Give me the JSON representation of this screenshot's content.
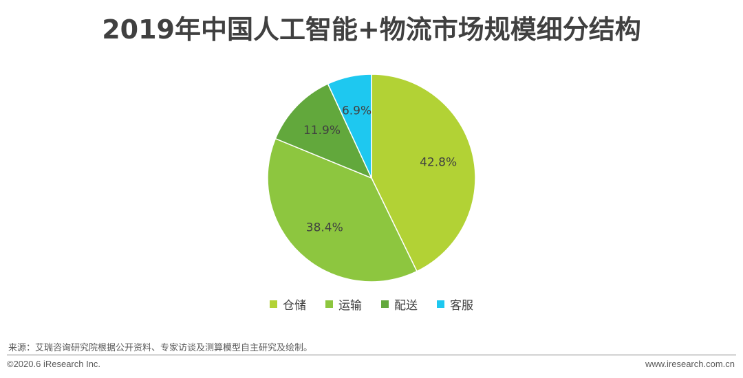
{
  "title": "2019年中国人工智能+物流市场规模细分结构",
  "chart_data": {
    "type": "pie",
    "slices": [
      {
        "label": "仓储",
        "value": 42.8,
        "value_label": "42.8%",
        "color": "#b2d235"
      },
      {
        "label": "运输",
        "value": 38.4,
        "value_label": "38.4%",
        "color": "#8dc63f"
      },
      {
        "label": "配送",
        "value": 11.9,
        "value_label": "11.9%",
        "color": "#62a83c"
      },
      {
        "label": "客服",
        "value": 6.9,
        "value_label": "6.9%",
        "color": "#1ec8f0"
      }
    ],
    "legend_position": "bottom"
  },
  "source": "来源：艾瑞咨询研究院根据公开资料、专家访谈及测算模型自主研究及绘制。",
  "footer": {
    "copyright": "©2020.6 iResearch Inc.",
    "website": "www.iresearch.com.cn"
  }
}
